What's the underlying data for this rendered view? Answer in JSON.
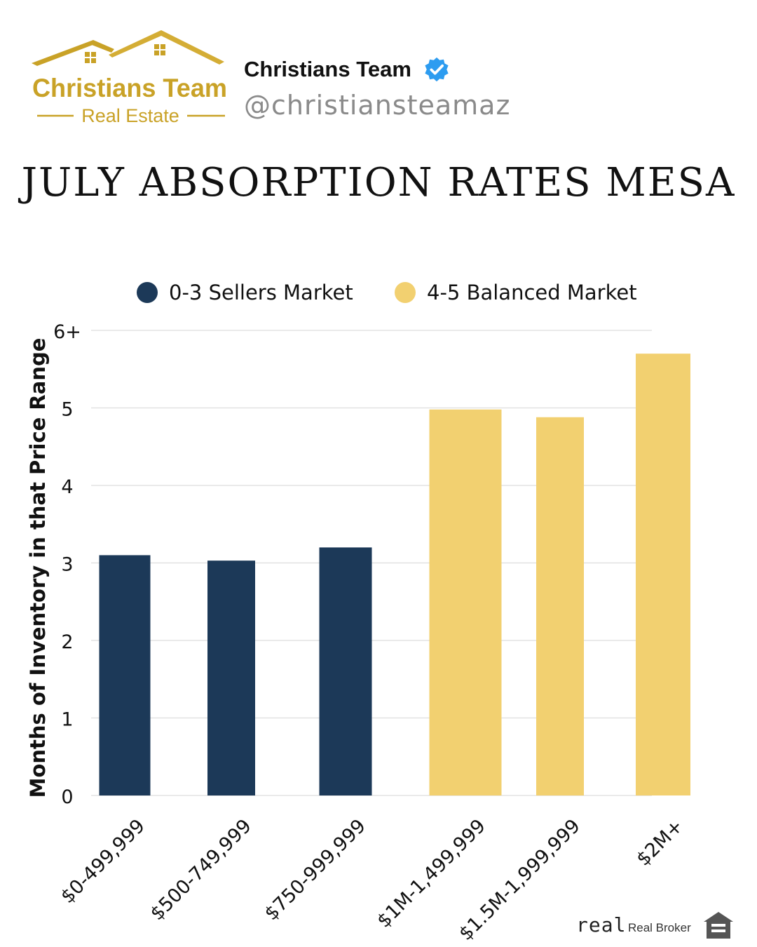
{
  "header": {
    "logo": {
      "line1": "Christians Team",
      "line2": "Real Estate",
      "color": "#c9a227"
    },
    "profile_name": "Christians Team",
    "verified_icon": "verified-badge-icon",
    "handle": "@christiansteamaz"
  },
  "title": "JULY ABSORPTION RATES MESA",
  "legend": [
    {
      "label": "0-3 Sellers Market",
      "color": "#1c3958"
    },
    {
      "label": "4-5 Balanced Market",
      "color": "#f2d070"
    }
  ],
  "chart_data": {
    "type": "bar",
    "title": "JULY ABSORPTION RATES MESA",
    "xlabel": "",
    "ylabel": "Months of Inventory in that Price Range",
    "categories": [
      "$0-499,999",
      "$500-749,999",
      "$750-999,999",
      "$1M-1,499,999",
      "$1.5M-1,999,999",
      "$2M+"
    ],
    "values": [
      3.1,
      3.03,
      3.2,
      4.98,
      4.88,
      5.7
    ],
    "bar_colors": [
      "#1c3958",
      "#1c3958",
      "#1c3958",
      "#f2d070",
      "#f2d070",
      "#f2d070"
    ],
    "yticks": [
      "0",
      "1",
      "2",
      "3",
      "4",
      "5",
      "6+"
    ],
    "ylim": [
      0,
      6
    ],
    "grid": true,
    "legend_position": "top"
  },
  "footer": {
    "brand_logo": "real",
    "brand_text": "Real Broker",
    "equal_housing_icon": "equal-housing-icon"
  }
}
